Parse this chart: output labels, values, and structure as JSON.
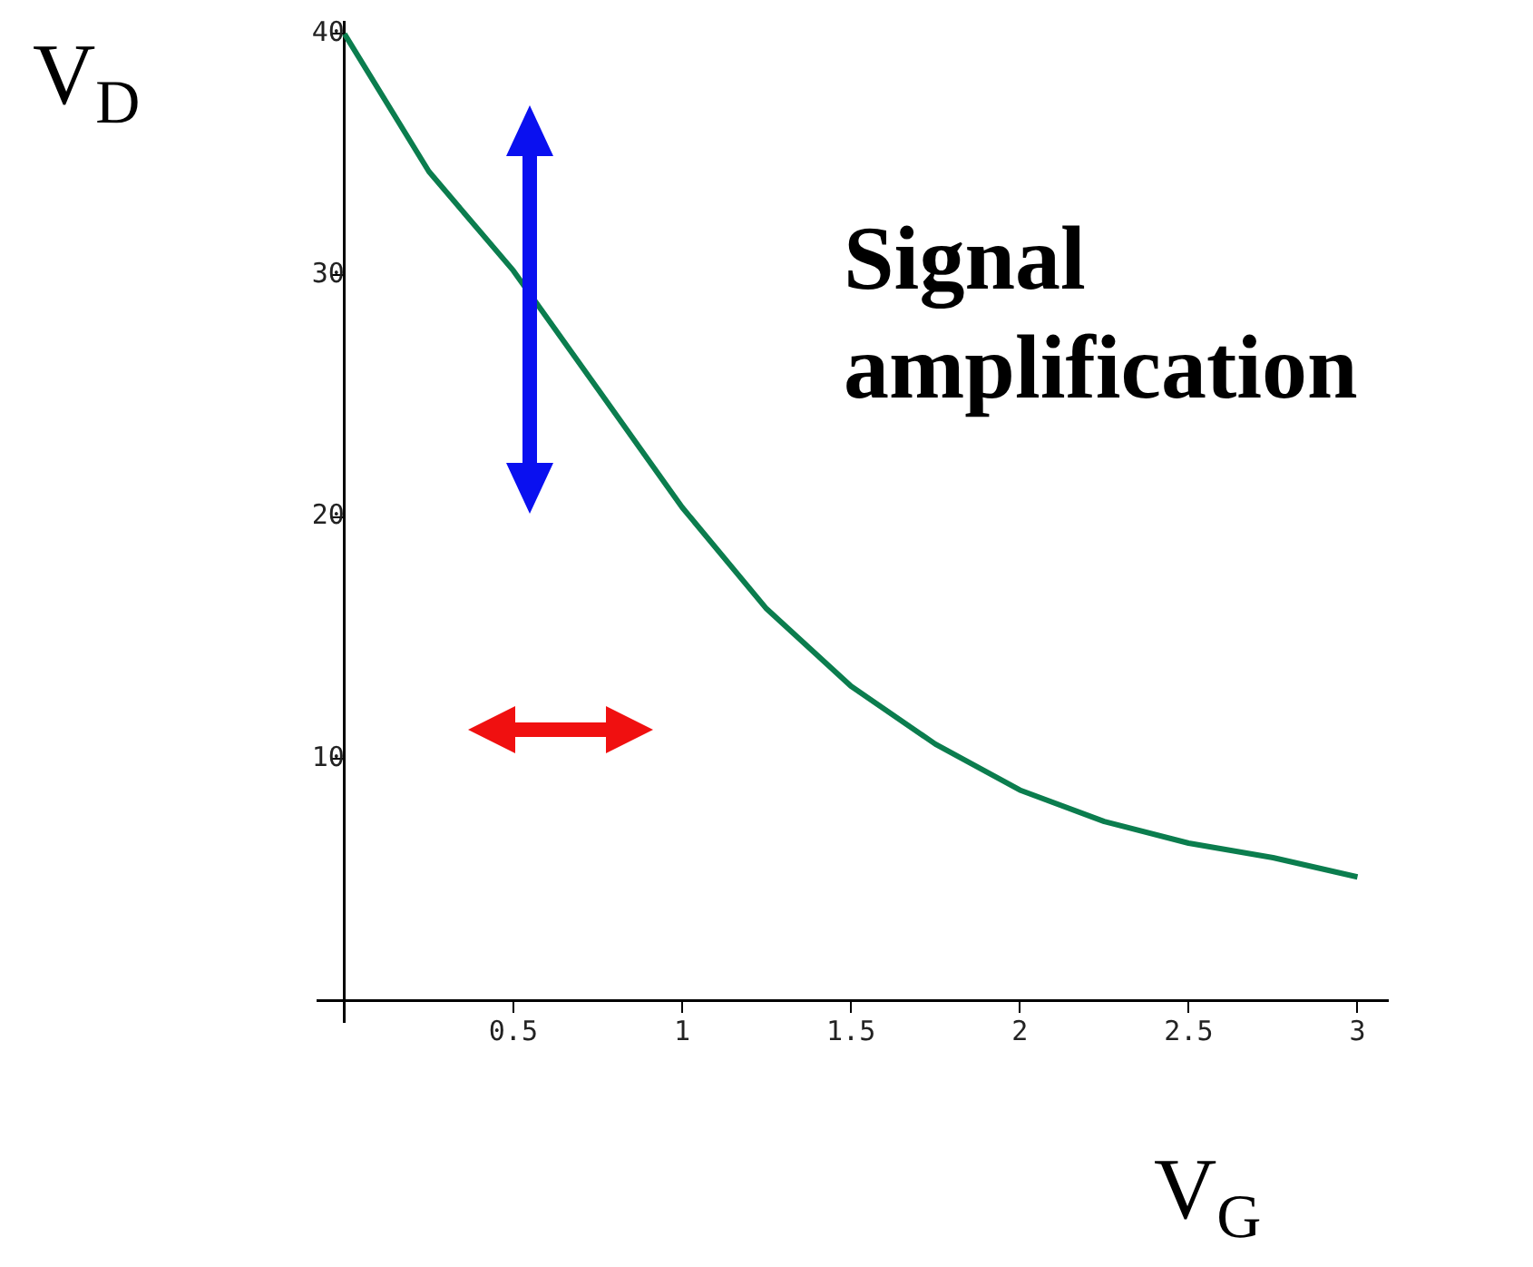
{
  "chart_data": {
    "type": "line",
    "xlabel": "V$_{G}$",
    "ylabel": "V$_{D}$",
    "annotations": [
      "Signal amplification"
    ],
    "x": [
      0,
      0.25,
      0.5,
      0.75,
      1,
      1.25,
      1.5,
      1.75,
      2,
      2.25,
      2.5,
      2.75,
      3
    ],
    "series": [
      {
        "color": "#0b7d4e",
        "values": [
          40,
          34.3,
          30.2,
          25.3,
          20.4,
          16.2,
          13,
          10.6,
          8.7,
          7.4,
          6.5,
          5.9,
          5.1
        ]
      }
    ],
    "xlim": [
      -0.08,
      3.09
    ],
    "ylim": [
      -0.9,
      40.5
    ],
    "xticks": [
      0.5,
      1,
      1.5,
      2,
      2.5,
      3
    ],
    "yticks": [
      10,
      20,
      30,
      40
    ],
    "grid": false,
    "legend": false,
    "marker": "none",
    "line_style": "solid"
  }
}
